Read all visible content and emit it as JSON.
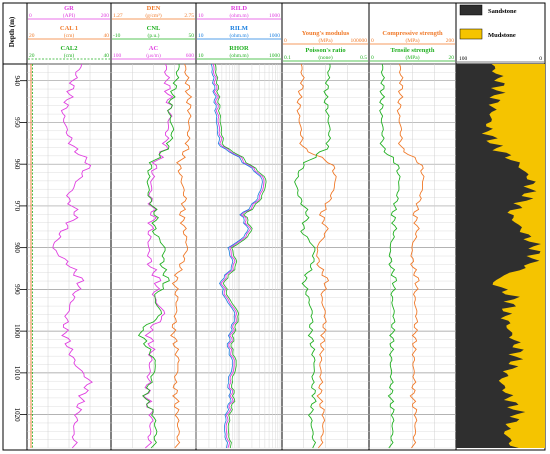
{
  "chart_data": {
    "type": "line",
    "depth_axis": {
      "label": "Depth (m)",
      "range": [
        936,
        1028
      ],
      "ticks": [
        940,
        950,
        960,
        970,
        980,
        990,
        1000,
        1010,
        1020
      ]
    },
    "tracks": [
      {
        "id": "gr-cal",
        "header": [
          {
            "name": "GR",
            "unit": "(API)",
            "min": "0",
            "max": "200",
            "color": "#e040e0"
          },
          {
            "name": "CAL 1",
            "unit": "(cm)",
            "min": "20",
            "max": "40",
            "color": "#f07a2a"
          },
          {
            "name": "CAL2",
            "unit": "(cm)",
            "min": "20",
            "max": "40",
            "color": "#22b022",
            "dashed": true
          }
        ]
      },
      {
        "id": "den-cnl-ac",
        "header": [
          {
            "name": "DEN",
            "unit": "(g/cm³)",
            "min": "1.27",
            "max": "2.75",
            "color": "#f07a2a"
          },
          {
            "name": "CNL",
            "unit": "(p.u.)",
            "min": "-10",
            "max": "50",
            "color": "#22b022"
          },
          {
            "name": "AC",
            "unit": "(μs/m)",
            "min": "100",
            "max": "600",
            "color": "#e040e0"
          }
        ]
      },
      {
        "id": "resistivity",
        "header": [
          {
            "name": "RILD",
            "unit": "(ohm.m)",
            "min": "10",
            "max": "1000",
            "color": "#e040e0"
          },
          {
            "name": "RILM",
            "unit": "(ohm.m)",
            "min": "10",
            "max": "1000",
            "color": "#1a7fe0"
          },
          {
            "name": "RHOR",
            "unit": "(ohm.m)",
            "min": "10",
            "max": "1000",
            "color": "#22b022"
          }
        ]
      },
      {
        "id": "elastic",
        "header": [
          {
            "name": "Young's modulus",
            "unit": "(MPa)",
            "min": "0",
            "max": "100000",
            "color": "#f07a2a"
          },
          {
            "name": "Poisson's ratio",
            "unit": "(none)",
            "min": "0.1",
            "max": "0.5",
            "color": "#22b022"
          }
        ]
      },
      {
        "id": "strength",
        "header": [
          {
            "name": "Compressive strength",
            "unit": "(MPa)",
            "min": "0",
            "max": "200",
            "color": "#f07a2a"
          },
          {
            "name": "Tensile strength",
            "unit": "(MPa)",
            "min": "0",
            "max": "20",
            "color": "#22b022"
          }
        ]
      },
      {
        "id": "lithology",
        "legend": [
          {
            "name": "Sandstone",
            "color": "#2f2f2f"
          },
          {
            "name": "Mudstone",
            "color": "#f5c400"
          }
        ],
        "scale": {
          "min": "100",
          "max": "0"
        }
      }
    ],
    "curves": {
      "GR": {
        "depth": [
          936,
          940,
          944,
          948,
          952,
          956,
          960,
          964,
          968,
          972,
          976,
          980,
          984,
          988,
          992,
          996,
          1000,
          1004,
          1008,
          1012,
          1016,
          1020,
          1024,
          1028
        ],
        "values": [
          130,
          110,
          100,
          85,
          95,
          110,
          150,
          120,
          95,
          120,
          85,
          60,
          100,
          130,
          110,
          95,
          90,
          100,
          115,
          150,
          130,
          120,
          110,
          115
        ]
      },
      "DEN": {
        "depth": [
          936,
          940,
          944,
          948,
          952,
          956,
          960,
          964,
          968,
          972,
          976,
          980,
          984,
          988,
          992,
          996,
          1000,
          1004,
          1008,
          1012,
          1016,
          1020,
          1024,
          1028
        ],
        "values": [
          2.55,
          2.6,
          2.62,
          2.64,
          2.62,
          2.6,
          2.45,
          2.5,
          2.56,
          2.5,
          2.55,
          2.6,
          2.5,
          2.38,
          2.42,
          2.4,
          2.35,
          2.4,
          2.45,
          2.38,
          2.4,
          2.42,
          2.45,
          2.42
        ]
      },
      "CNL": {
        "depth": [
          936,
          940,
          944,
          948,
          952,
          956,
          960,
          964,
          968,
          972,
          976,
          980,
          984,
          988,
          992,
          996,
          1000,
          1004,
          1008,
          1012,
          1016,
          1020,
          1024,
          1028
        ],
        "values": [
          38,
          36,
          33,
          31,
          34,
          30,
          18,
          16,
          17,
          22,
          20,
          28,
          26,
          30,
          20,
          26,
          10,
          16,
          22,
          18,
          14,
          20,
          22,
          20
        ]
      },
      "AC": {
        "depth": [
          936,
          940,
          944,
          948,
          952,
          956,
          960,
          964,
          968,
          972,
          976,
          980,
          984,
          988,
          992,
          996,
          1000,
          1004,
          1008,
          1012,
          1016,
          1020,
          1024,
          1028
        ],
        "values": [
          420,
          430,
          440,
          450,
          430,
          420,
          360,
          340,
          330,
          350,
          330,
          320,
          330,
          380,
          350,
          420,
          320,
          340,
          330,
          320,
          310,
          340,
          330,
          320
        ]
      },
      "RILD": {
        "depth": [
          936,
          940,
          944,
          948,
          952,
          956,
          960,
          964,
          968,
          972,
          976,
          980,
          984,
          988,
          992,
          996,
          1000,
          1004,
          1008,
          1012,
          1016,
          1020,
          1024,
          1028
        ],
        "values": [
          25,
          28,
          30,
          32,
          35,
          40,
          150,
          400,
          300,
          120,
          180,
          60,
          80,
          40,
          50,
          90,
          70,
          60,
          80,
          60,
          70,
          55,
          50,
          60
        ]
      },
      "YM": {
        "depth": [
          936,
          940,
          944,
          948,
          952,
          956,
          960,
          964,
          968,
          972,
          976,
          980,
          984,
          988,
          992,
          996,
          1000,
          1004,
          1008,
          1012,
          1016,
          1020,
          1024,
          1028
        ],
        "values": [
          22000,
          24000,
          20000,
          19000,
          22000,
          23000,
          58000,
          62000,
          56000,
          45000,
          52000,
          40000,
          42000,
          52000,
          45000,
          50000,
          48000,
          46000,
          44000,
          45000,
          43000,
          48000,
          47000,
          44000
        ]
      },
      "PR": {
        "depth": [
          936,
          940,
          944,
          948,
          952,
          956,
          960,
          964,
          968,
          972,
          976,
          980,
          984,
          988,
          992,
          996,
          1000,
          1004,
          1008,
          1012,
          1016,
          1020,
          1024,
          1028
        ],
        "values": [
          0.32,
          0.31,
          0.3,
          0.31,
          0.32,
          0.31,
          0.2,
          0.16,
          0.18,
          0.22,
          0.19,
          0.25,
          0.24,
          0.2,
          0.22,
          0.24,
          0.23,
          0.24,
          0.25,
          0.24,
          0.25,
          0.23,
          0.24,
          0.25
        ]
      },
      "CS": {
        "depth": [
          936,
          940,
          944,
          948,
          952,
          956,
          960,
          964,
          968,
          972,
          976,
          980,
          984,
          988,
          992,
          996,
          1000,
          1004,
          1008,
          1012,
          1016,
          1020,
          1024,
          1028
        ],
        "values": [
          70,
          75,
          72,
          68,
          74,
          72,
          120,
          125,
          118,
          105,
          112,
          98,
          100,
          112,
          104,
          110,
          106,
          104,
          102,
          104,
          100,
          108,
          106,
          102
        ]
      },
      "TS": {
        "depth": [
          936,
          940,
          944,
          948,
          952,
          956,
          960,
          964,
          968,
          972,
          976,
          980,
          984,
          988,
          992,
          996,
          1000,
          1004,
          1008,
          1012,
          1016,
          1020,
          1024,
          1028
        ],
        "values": [
          3,
          3.2,
          3,
          2.8,
          3.2,
          3,
          6.5,
          7,
          6.5,
          5.5,
          6,
          4.8,
          5,
          6,
          5.2,
          5.8,
          5.4,
          5.2,
          5,
          5.2,
          5,
          5.5,
          5.4,
          5
        ]
      },
      "SAND": {
        "depth": [
          936,
          940,
          944,
          948,
          952,
          956,
          960,
          964,
          968,
          972,
          976,
          980,
          984,
          988,
          992,
          996,
          1000,
          1004,
          1008,
          1012,
          1016,
          1020,
          1024,
          1028
        ],
        "values": [
          40,
          50,
          45,
          40,
          35,
          45,
          70,
          85,
          80,
          60,
          75,
          90,
          85,
          40,
          65,
          55,
          60,
          70,
          65,
          50,
          60,
          70,
          55,
          65
        ]
      }
    },
    "grid": true
  }
}
